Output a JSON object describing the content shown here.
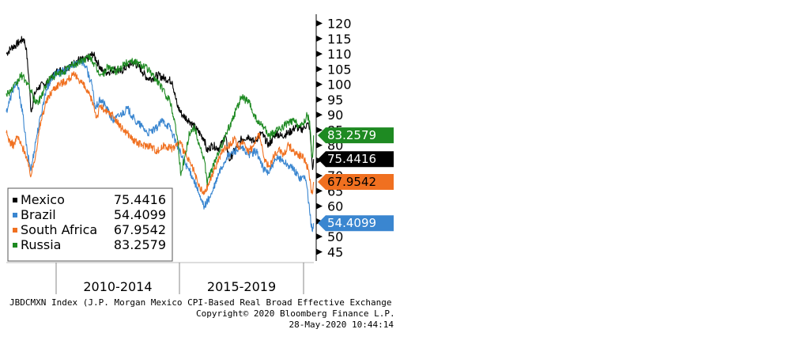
{
  "chart_data": {
    "type": "line",
    "ylim": [
      42,
      123
    ],
    "y_ticks": [
      45,
      50,
      55,
      60,
      65,
      70,
      75,
      80,
      85,
      90,
      95,
      100,
      105,
      110,
      115,
      120
    ],
    "y_axis_side": "right",
    "periods": [
      {
        "label": "2010-2014",
        "start": 2010.0,
        "end": 2015.0
      },
      {
        "label": "2015-2019",
        "start": 2015.0,
        "end": 2020.0
      }
    ],
    "xlim": [
      2008.0,
      2020.42
    ],
    "series": [
      {
        "name": "Mexico",
        "color": "#000000",
        "last_value": "75.4416",
        "x": [
          2008.0,
          2008.2,
          2008.4,
          2008.55,
          2008.7,
          2008.8,
          2008.9,
          2009.0,
          2009.15,
          2009.3,
          2009.5,
          2009.75,
          2010.0,
          2010.3,
          2010.6,
          2010.9,
          2011.2,
          2011.5,
          2011.7,
          2011.9,
          2012.1,
          2012.4,
          2012.6,
          2012.9,
          2013.1,
          2013.35,
          2013.5,
          2013.7,
          2013.9,
          2014.1,
          2014.4,
          2014.7,
          2014.9,
          2015.1,
          2015.4,
          2015.7,
          2016.0,
          2016.1,
          2016.3,
          2016.6,
          2016.85,
          2017.0,
          2017.2,
          2017.5,
          2017.8,
          2018.0,
          2018.3,
          2018.6,
          2018.9,
          2019.1,
          2019.4,
          2019.7,
          2019.9,
          2020.05,
          2020.15,
          2020.25,
          2020.32,
          2020.37,
          2020.41
        ],
        "y": [
          110,
          112,
          113,
          114,
          115,
          112,
          103,
          91,
          97,
          99,
          100,
          101,
          104,
          105,
          106,
          108,
          108,
          110,
          107,
          104,
          104,
          105,
          104,
          106,
          107,
          106,
          104,
          102,
          102,
          103,
          102,
          101,
          93,
          90,
          88,
          85,
          82,
          78,
          80,
          79,
          83,
          75,
          78,
          82,
          83,
          81,
          84,
          80,
          84,
          83,
          84,
          86,
          85,
          86,
          87,
          86,
          78,
          72,
          75.4416
        ]
      },
      {
        "name": "Brazil",
        "color": "#3a86d0",
        "last_value": "54.4099",
        "x": [
          2008.0,
          2008.15,
          2008.3,
          2008.45,
          2008.55,
          2008.7,
          2008.85,
          2009.0,
          2009.2,
          2009.4,
          2009.6,
          2009.9,
          2010.2,
          2010.5,
          2010.8,
          2011.0,
          2011.2,
          2011.45,
          2011.6,
          2011.8,
          2012.0,
          2012.3,
          2012.6,
          2012.9,
          2013.2,
          2013.5,
          2013.7,
          2014.0,
          2014.3,
          2014.6,
          2014.9,
          2015.1,
          2015.3,
          2015.5,
          2015.7,
          2015.85,
          2016.0,
          2016.3,
          2016.6,
          2016.9,
          2017.2,
          2017.5,
          2017.8,
          2018.1,
          2018.4,
          2018.6,
          2018.8,
          2019.0,
          2019.3,
          2019.6,
          2019.9,
          2020.05,
          2020.15,
          2020.25,
          2020.35,
          2020.41
        ],
        "y": [
          91,
          95,
          99,
          100,
          96,
          88,
          77,
          72,
          82,
          90,
          98,
          103,
          104,
          105,
          107,
          108,
          106,
          100,
          92,
          95,
          93,
          88,
          90,
          92,
          88,
          86,
          84,
          85,
          88,
          86,
          80,
          76,
          73,
          70,
          66,
          62,
          60,
          64,
          71,
          76,
          78,
          79,
          77,
          78,
          72,
          71,
          74,
          76,
          74,
          72,
          69,
          70,
          66,
          58,
          52,
          54.4099
        ]
      },
      {
        "name": "South Africa",
        "color": "#f07020",
        "last_value": "67.9542",
        "x": [
          2008.0,
          2008.15,
          2008.3,
          2008.45,
          2008.6,
          2008.75,
          2008.9,
          2009.0,
          2009.2,
          2009.4,
          2009.6,
          2009.85,
          2010.1,
          2010.4,
          2010.7,
          2010.9,
          2011.1,
          2011.3,
          2011.5,
          2011.65,
          2011.8,
          2012.0,
          2012.3,
          2012.6,
          2012.9,
          2013.2,
          2013.5,
          2013.8,
          2014.1,
          2014.4,
          2014.7,
          2015.0,
          2015.3,
          2015.55,
          2015.75,
          2015.9,
          2016.0,
          2016.2,
          2016.4,
          2016.6,
          2016.8,
          2017.0,
          2017.2,
          2017.4,
          2017.6,
          2017.8,
          2018.0,
          2018.2,
          2018.4,
          2018.6,
          2018.8,
          2019.0,
          2019.2,
          2019.4,
          2019.6,
          2019.8,
          2020.0,
          2020.1,
          2020.2,
          2020.3,
          2020.36,
          2020.41
        ],
        "y": [
          84,
          81,
          80,
          83,
          80,
          78,
          73,
          70,
          78,
          88,
          94,
          98,
          100,
          101,
          103,
          102,
          100,
          97,
          94,
          89,
          93,
          91,
          90,
          86,
          84,
          81,
          80,
          80,
          78,
          80,
          79,
          81,
          76,
          72,
          67,
          65,
          64,
          68,
          72,
          76,
          79,
          80,
          82,
          79,
          81,
          78,
          80,
          84,
          76,
          73,
          76,
          79,
          77,
          80,
          78,
          77,
          76,
          74,
          72,
          66,
          64,
          67.9542
        ]
      },
      {
        "name": "Russia",
        "color": "#1e8a22",
        "last_value": "83.2579",
        "x": [
          2008.0,
          2008.2,
          2008.4,
          2008.6,
          2008.8,
          2009.0,
          2009.1,
          2009.3,
          2009.5,
          2009.75,
          2010.0,
          2010.3,
          2010.6,
          2010.9,
          2011.1,
          2011.4,
          2011.7,
          2011.9,
          2012.1,
          2012.4,
          2012.7,
          2013.0,
          2013.3,
          2013.6,
          2013.9,
          2014.2,
          2014.4,
          2014.6,
          2014.8,
          2014.95,
          2015.05,
          2015.2,
          2015.4,
          2015.6,
          2015.8,
          2016.0,
          2016.1,
          2016.3,
          2016.6,
          2016.9,
          2017.1,
          2017.3,
          2017.5,
          2017.8,
          2018.0,
          2018.2,
          2018.4,
          2018.6,
          2018.8,
          2019.0,
          2019.3,
          2019.6,
          2019.9,
          2020.05,
          2020.15,
          2020.25,
          2020.32,
          2020.37,
          2020.41
        ],
        "y": [
          97,
          98,
          100,
          103,
          101,
          98,
          95,
          94,
          98,
          102,
          103,
          104,
          106,
          107,
          108,
          109,
          104,
          103,
          106,
          104,
          106,
          108,
          107,
          106,
          103,
          100,
          97,
          95,
          88,
          80,
          70,
          76,
          84,
          86,
          80,
          75,
          68,
          72,
          78,
          84,
          88,
          92,
          96,
          94,
          90,
          87,
          86,
          83,
          84,
          85,
          87,
          88,
          86,
          88,
          90,
          88,
          78,
          76,
          83.2579
        ]
      }
    ]
  },
  "footer": {
    "line1": "JBDCMXN Index (J.P. Morgan Mexico CPI-Based Real Broad Effective Exchange",
    "line2": "Copyright© 2020 Bloomberg Finance L.P.",
    "line3": "28-May-2020 10:44:14"
  }
}
